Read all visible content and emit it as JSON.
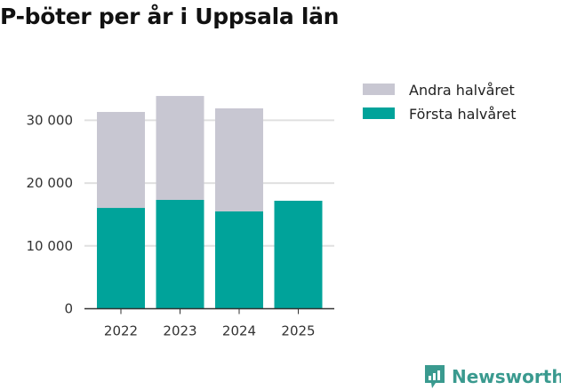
{
  "chart_data": {
    "type": "bar",
    "stacked": true,
    "title": "P-böter per år i Uppsala län",
    "categories": [
      "2022",
      "2023",
      "2024",
      "2025"
    ],
    "series": [
      {
        "name": "Första halvåret",
        "color": "#00a39a",
        "values": [
          16050,
          17330,
          15490,
          17190
        ]
      },
      {
        "name": "Andra halvåret",
        "color": "#c8c7d2",
        "values": [
          15280,
          16540,
          16410,
          0
        ]
      }
    ],
    "ylim": [
      0,
      36000
    ],
    "yticks": [
      0,
      10000,
      20000,
      30000
    ],
    "ytick_labels": [
      "0",
      "10 000",
      "20 000",
      "30 000"
    ],
    "xlabel": "",
    "ylabel": "",
    "grid": true,
    "legend_placement": "top-right"
  },
  "brand": "Newsworthy"
}
